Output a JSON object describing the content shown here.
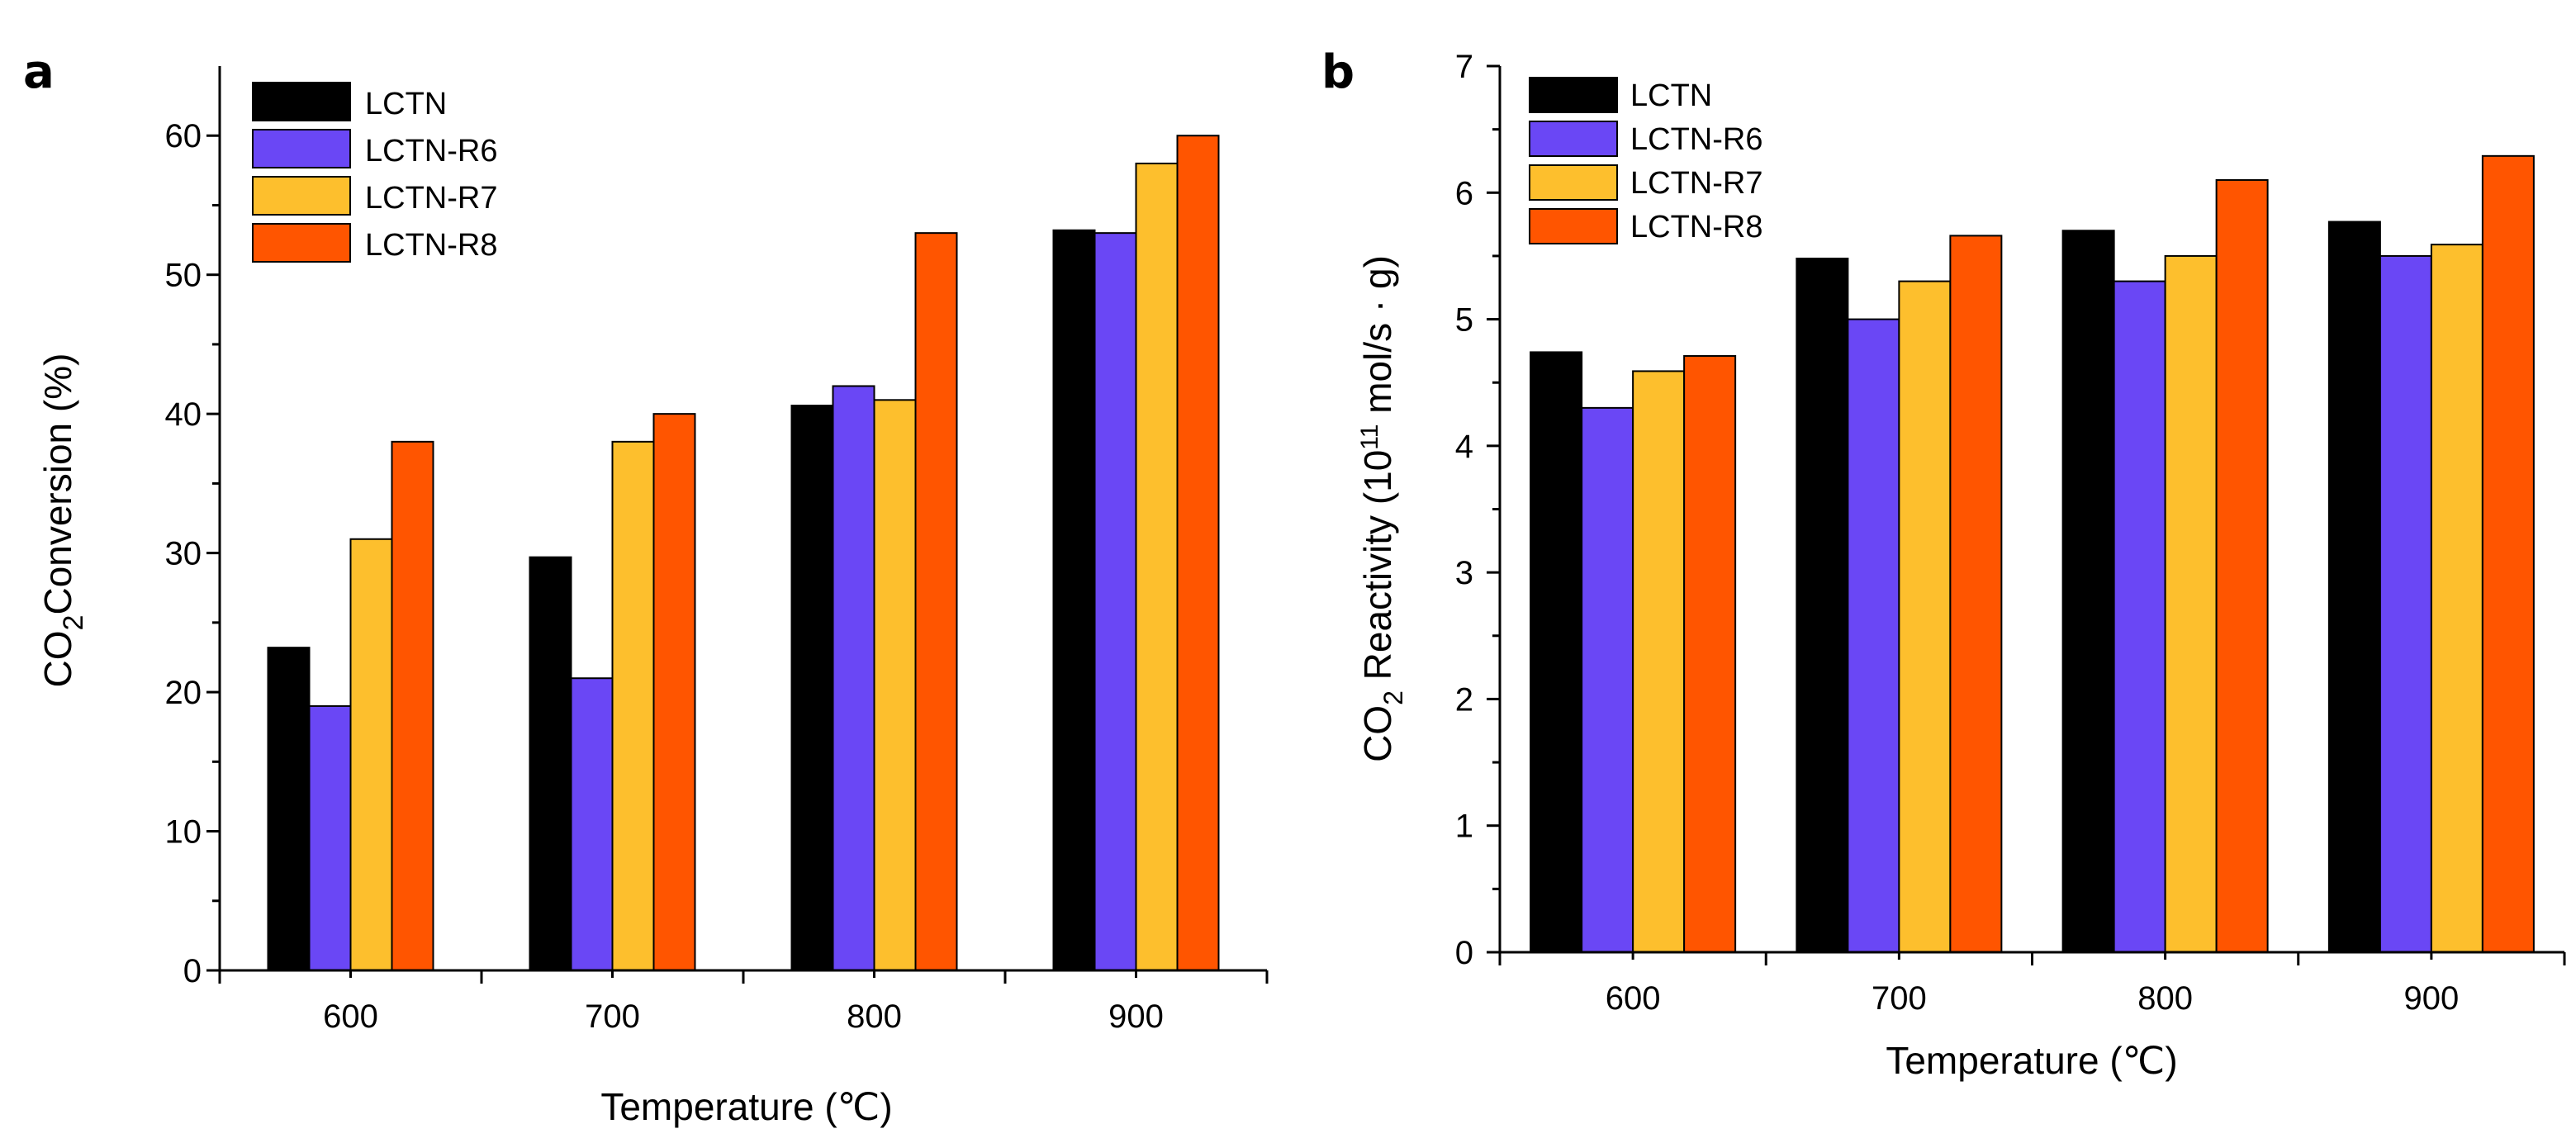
{
  "chart_data": [
    {
      "panel_label": "a",
      "type": "bar",
      "categories": [
        "600",
        "700",
        "800",
        "900"
      ],
      "series": [
        {
          "name": "LCTN",
          "color": "#000000",
          "values": [
            23.2,
            29.7,
            40.6,
            53.2
          ]
        },
        {
          "name": "LCTN-R6",
          "color": "#6a47f5",
          "values": [
            19,
            21,
            42,
            53
          ]
        },
        {
          "name": "LCTN-R7",
          "color": "#fdbf2d",
          "values": [
            31,
            38,
            41,
            58
          ]
        },
        {
          "name": "LCTN-R8",
          "color": "#ff5500",
          "values": [
            38,
            40,
            53,
            60
          ]
        }
      ],
      "ylim": [
        0,
        65
      ],
      "yticks": [
        "0",
        "10",
        "20",
        "30",
        "40",
        "50",
        "60"
      ],
      "xlabel": "Temperature (℃)",
      "ylabel": {
        "main": "CO",
        "sub": "2",
        "rest": "Conversion (%)"
      },
      "legend_position": "top-left"
    },
    {
      "panel_label": "b",
      "type": "bar",
      "categories": [
        "600",
        "700",
        "800",
        "900"
      ],
      "series": [
        {
          "name": "LCTN",
          "color": "#000000",
          "values": [
            4.74,
            5.48,
            5.7,
            5.77
          ]
        },
        {
          "name": "LCTN-R6",
          "color": "#6a47f5",
          "values": [
            4.3,
            5.0,
            5.3,
            5.5
          ]
        },
        {
          "name": "LCTN-R7",
          "color": "#fdbf2d",
          "values": [
            4.59,
            5.3,
            5.5,
            5.59
          ]
        },
        {
          "name": "LCTN-R8",
          "color": "#ff5500",
          "values": [
            4.71,
            5.66,
            6.1,
            6.29
          ]
        }
      ],
      "ylim": [
        0,
        7
      ],
      "yticks": [
        "0",
        "1",
        "2",
        "3",
        "4",
        "5",
        "6",
        "7"
      ],
      "xlabel": "Temperature (℃)",
      "ylabel": {
        "main": "CO",
        "sub": "2",
        "rest": " Reactivity (10",
        "sup": "11",
        "tail": " mol/s · g)"
      },
      "legend_position": "top-left"
    }
  ]
}
